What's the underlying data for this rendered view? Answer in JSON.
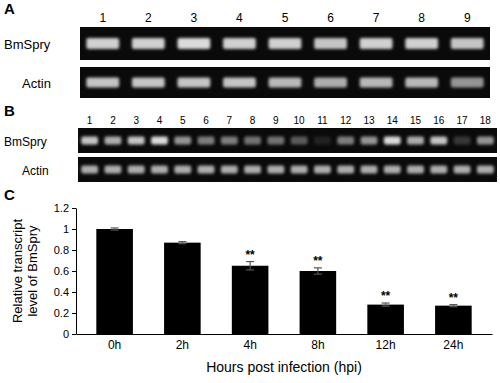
{
  "panels": [
    {
      "label": "A",
      "lanes": [
        1,
        2,
        3,
        4,
        5,
        6,
        7,
        8,
        9
      ],
      "rows": [
        {
          "name": "BmSpry",
          "intensity": [
            0.85,
            0.85,
            0.9,
            0.85,
            0.85,
            0.8,
            0.85,
            0.85,
            0.8
          ]
        },
        {
          "name": "Actin",
          "intensity": [
            0.8,
            0.8,
            0.8,
            0.8,
            0.75,
            0.7,
            0.75,
            0.75,
            0.6
          ]
        }
      ]
    },
    {
      "label": "B",
      "lanes": [
        1,
        2,
        3,
        4,
        5,
        6,
        7,
        8,
        9,
        10,
        11,
        12,
        13,
        14,
        15,
        16,
        17,
        18
      ],
      "rows": [
        {
          "name": "BmSpry",
          "intensity": [
            0.8,
            0.7,
            0.8,
            0.9,
            0.6,
            0.5,
            0.5,
            0.45,
            0.45,
            0.35,
            0.1,
            0.5,
            0.6,
            0.9,
            0.7,
            0.8,
            0.2,
            0.6
          ]
        },
        {
          "name": "Actin",
          "intensity": [
            0.7,
            0.7,
            0.7,
            0.7,
            0.7,
            0.7,
            0.7,
            0.7,
            0.7,
            0.7,
            0.7,
            0.7,
            0.7,
            0.7,
            0.7,
            0.7,
            0.7,
            0.7
          ]
        }
      ]
    }
  ],
  "chart_label": "C",
  "chart_data": {
    "type": "bar",
    "categories": [
      "0h",
      "2h",
      "4h",
      "8h",
      "12h",
      "24h"
    ],
    "values": [
      1.0,
      0.87,
      0.65,
      0.6,
      0.28,
      0.27
    ],
    "errors": [
      0.01,
      0.01,
      0.04,
      0.03,
      0.015,
      0.01
    ],
    "color": "#000000",
    "xlabel": "Hours post infection (hpi)",
    "ylabel": [
      "Relative transcript",
      "level of BmSpry"
    ],
    "ylim": [
      0,
      1.2
    ],
    "yticks": [
      0,
      0.2,
      0.4,
      0.6,
      0.8,
      1,
      1.2
    ],
    "grid": false,
    "annotations": [
      {
        "category": "4h",
        "text": "**"
      },
      {
        "category": "8h",
        "text": "**"
      },
      {
        "category": "12h",
        "text": "**"
      },
      {
        "category": "24h",
        "text": "**"
      }
    ]
  }
}
